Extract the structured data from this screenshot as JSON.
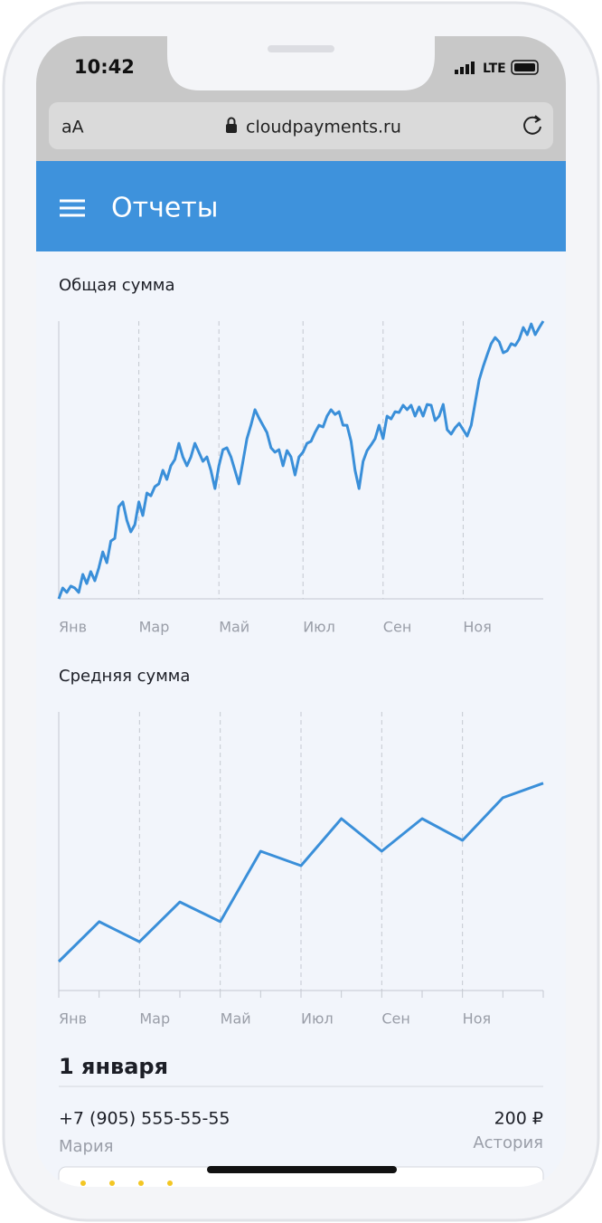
{
  "status": {
    "time": "10:42",
    "network": "LTE"
  },
  "browser": {
    "text_size": "aA",
    "url": "cloudpayments.ru"
  },
  "header": {
    "title": "Отчеты"
  },
  "chart_data": [
    {
      "type": "line",
      "title": "Общая сумма",
      "color": "#3a8fd9",
      "xlim": [
        0,
        121
      ],
      "ylim": [
        0,
        100
      ],
      "xticks": [
        {
          "value": 0,
          "label": "Янв"
        },
        {
          "value": 20,
          "label": "Мар"
        },
        {
          "value": 40,
          "label": "Май"
        },
        {
          "value": 61,
          "label": "Июл"
        },
        {
          "value": 81,
          "label": "Сен"
        },
        {
          "value": 101,
          "label": "Ноя"
        }
      ],
      "values": [
        0,
        3.9,
        2.3,
        4.6,
        3.9,
        2.3,
        8.8,
        5.5,
        9.8,
        6.5,
        11.1,
        16.9,
        13,
        20.8,
        21.8,
        33.2,
        34.9,
        28.3,
        24.1,
        26.7,
        34.9,
        30,
        38.1,
        37.1,
        40.4,
        41.4,
        46.3,
        43,
        47.9,
        50.2,
        56,
        51.1,
        47.9,
        51.1,
        56,
        52.8,
        49.5,
        51.1,
        46.3,
        39.7,
        47.9,
        53.7,
        54.4,
        51.1,
        46.3,
        41.4,
        49.5,
        57.7,
        62.5,
        68.1,
        65.1,
        62.5,
        59.9,
        54.4,
        52.8,
        53.7,
        47.9,
        53.4,
        51.1,
        44.6,
        51.1,
        52.8,
        56,
        56.7,
        59.9,
        62.5,
        61.9,
        65.8,
        68.1,
        66.4,
        67.4,
        62.5,
        62.5,
        56.7,
        46.3,
        39.7,
        49.5,
        53.4,
        55.4,
        57.7,
        62.5,
        57.7,
        65.8,
        64.8,
        67.4,
        67.1,
        69.7,
        68.1,
        69.7,
        65.8,
        69.1,
        65.8,
        70,
        69.7,
        64.2,
        65.8,
        70,
        60.9,
        59.3,
        61.6,
        63.2,
        60.9,
        58.6,
        62.5,
        70.7,
        78.8,
        83.7,
        87.9,
        91.9,
        94.1,
        92.5,
        88.6,
        89.3,
        91.9,
        91.2,
        93.5,
        97.7,
        95.1,
        99,
        95.1,
        97.7,
        100
      ]
    },
    {
      "type": "line",
      "title": "Средняя сумма",
      "color": "#3a8fd9",
      "ylim": [
        0,
        100
      ],
      "categories": [
        "Янв",
        null,
        "Мар",
        null,
        "Май",
        null,
        "Июл",
        null,
        "Сен",
        null,
        "Ноя",
        null,
        null
      ],
      "values": [
        10.4,
        24.7,
        17.5,
        31.8,
        24.7,
        50,
        44.8,
        61.7,
        50,
        61.7,
        53.9,
        69.2,
        74.4
      ]
    }
  ],
  "transactions": {
    "date": "1 января",
    "items": [
      {
        "phone": "+7 (905) 555-55-55",
        "amount": "200 ₽",
        "name": "Мария",
        "place": "Астория"
      }
    ]
  }
}
